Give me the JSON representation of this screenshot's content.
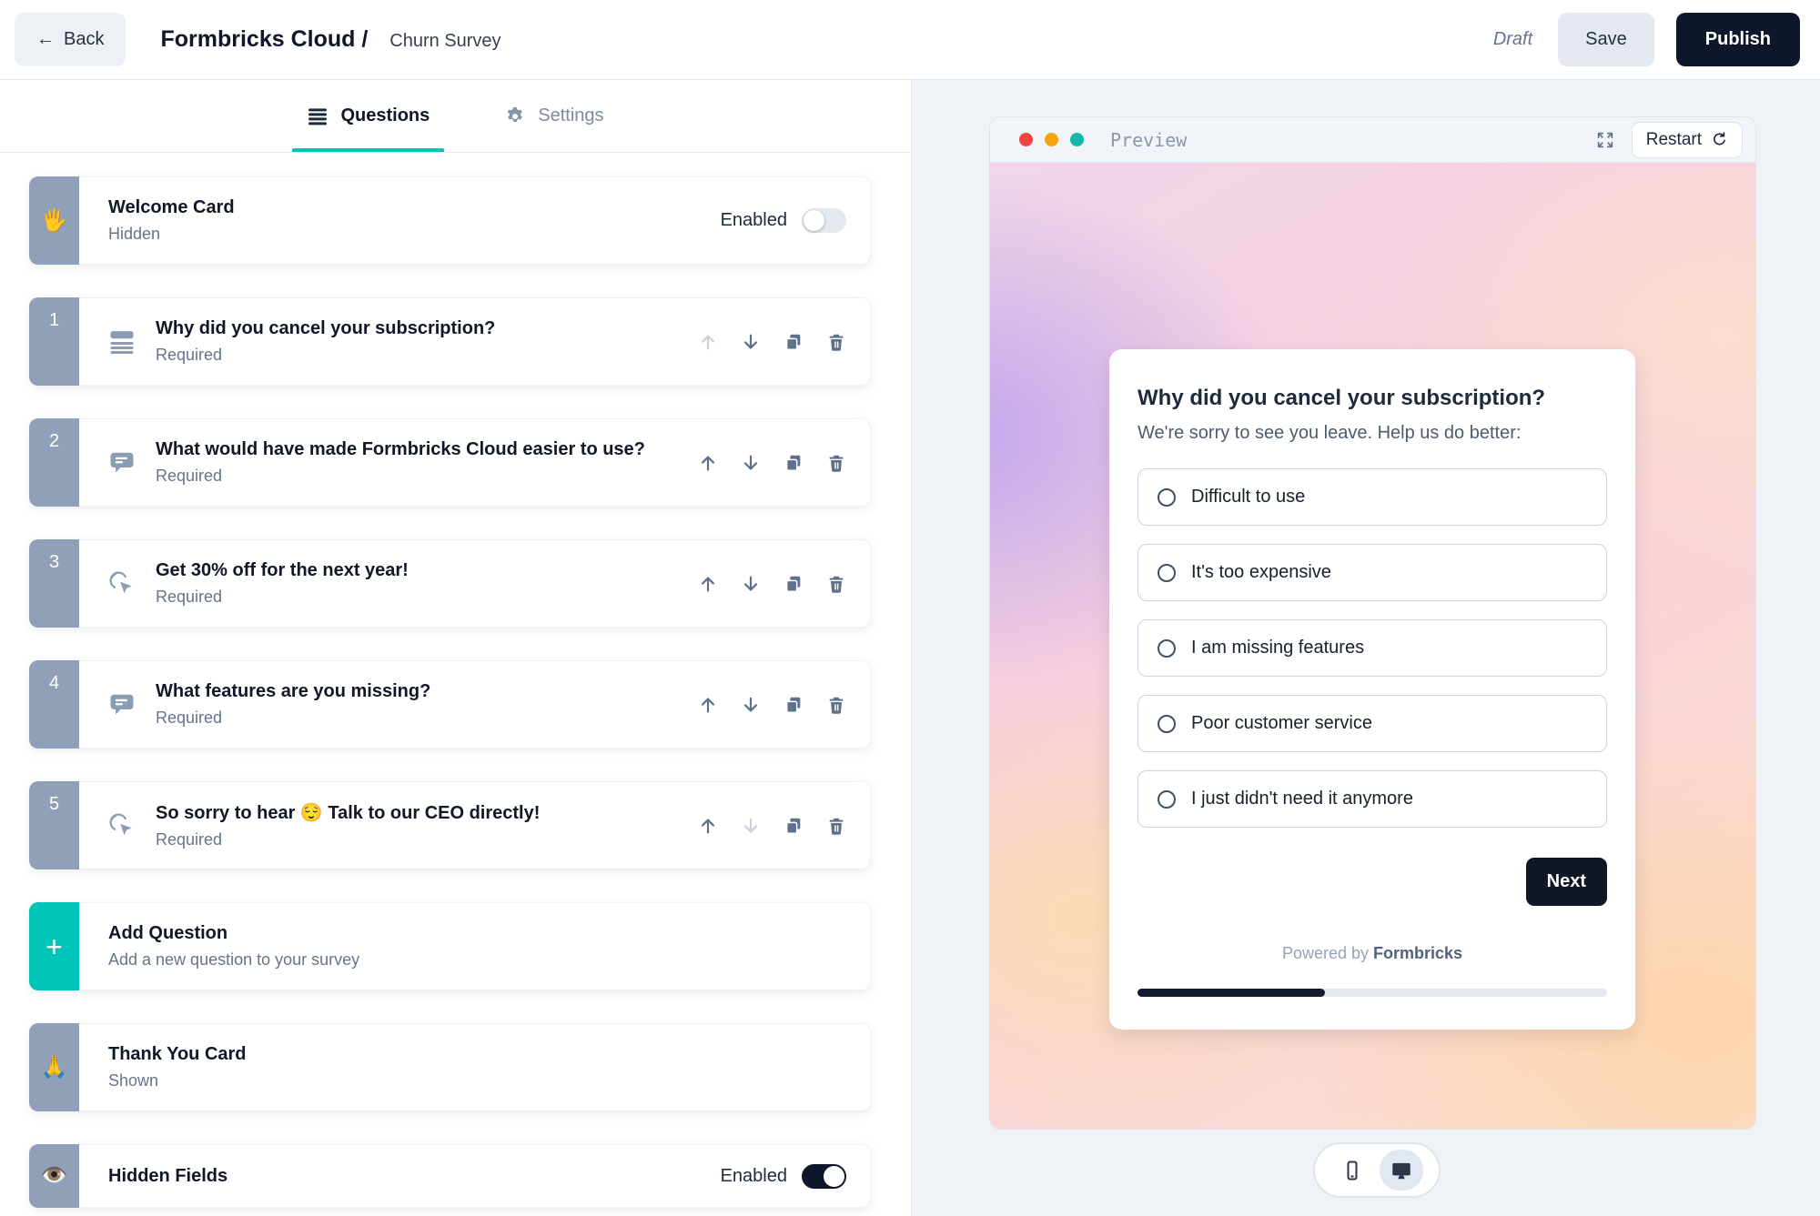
{
  "header": {
    "back_arrow": "←",
    "back_label": "Back",
    "title_primary": "Formbricks Cloud /",
    "title_secondary": "Churn Survey",
    "status": "Draft",
    "save_label": "Save",
    "publish_label": "Publish"
  },
  "tabs": {
    "questions_label": "Questions",
    "settings_label": "Settings"
  },
  "list": {
    "welcome": {
      "emoji": "🖐️",
      "title": "Welcome Card",
      "subtitle": "Hidden",
      "toggle_label": "Enabled",
      "enabled": false
    },
    "questions": [
      {
        "number": "1",
        "icon": "multiple-choice-icon",
        "title": "Why did you cancel your subscription?",
        "subtitle": "Required"
      },
      {
        "number": "2",
        "icon": "open-text-icon",
        "title": "What would have made Formbricks Cloud easier to use?",
        "subtitle": "Required"
      },
      {
        "number": "3",
        "icon": "cta-icon",
        "title": "Get 30% off for the next year!",
        "subtitle": "Required"
      },
      {
        "number": "4",
        "icon": "open-text-icon",
        "title": "What features are you missing?",
        "subtitle": "Required"
      },
      {
        "number": "5",
        "icon": "cta-icon",
        "title": "So sorry to hear 😌 Talk to our CEO directly!",
        "subtitle": "Required"
      }
    ],
    "add_question": {
      "plus": "+",
      "title": "Add Question",
      "subtitle": "Add a new question to your survey"
    },
    "thank_you": {
      "emoji": "🙏",
      "title": "Thank You Card",
      "subtitle": "Shown"
    },
    "hidden_fields": {
      "emoji": "👁️",
      "title": "Hidden Fields",
      "toggle_label": "Enabled",
      "enabled": true
    }
  },
  "preview": {
    "window_title": "Preview",
    "restart_label": "Restart",
    "question": {
      "title": "Why did you cancel your subscription?",
      "subtitle": "We're sorry to see you leave. Help us do better:",
      "options": [
        "Difficult to use",
        "It's too expensive",
        "I am missing features",
        "Poor customer service",
        "I just didn't need it anymore"
      ],
      "next_label": "Next"
    },
    "powered_by": "Powered by",
    "brand": "Formbricks",
    "progress_percent": 40
  },
  "colors": {
    "accent_teal": "#00c4b8",
    "dark_navy": "#0f172a",
    "card_tab_gray": "#8fa0b8",
    "dot_red": "#ef4444",
    "dot_yellow": "#f5a40b",
    "dot_teal": "#14b8a6"
  }
}
